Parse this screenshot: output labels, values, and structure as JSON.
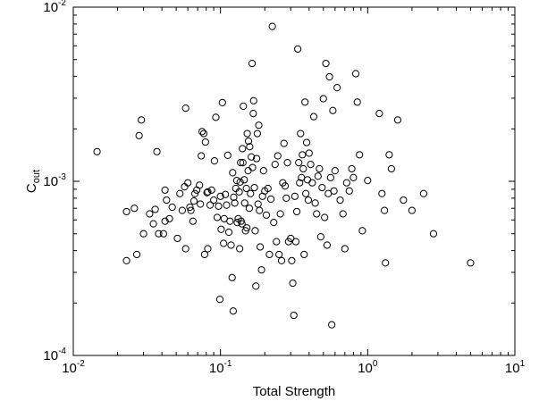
{
  "chart_data": {
    "type": "scatter",
    "title": "",
    "xlabel": "Total Strength",
    "ylabel": {
      "main": "C",
      "sub": "out"
    },
    "x_scale": "log",
    "y_scale": "log",
    "xlim": [
      0.01,
      10
    ],
    "ylim": [
      0.0001,
      0.01
    ],
    "grid": false,
    "legend": "none",
    "marker": "open-circle",
    "marker_color": "#000000",
    "x_ticks": [
      {
        "value": 0.01,
        "base": "10",
        "exp": "-2"
      },
      {
        "value": 0.1,
        "base": "10",
        "exp": "-1"
      },
      {
        "value": 1,
        "base": "10",
        "exp": "0"
      },
      {
        "value": 10,
        "base": "10",
        "exp": "1"
      }
    ],
    "y_ticks": [
      {
        "value": 0.0001,
        "base": "10",
        "exp": "-4"
      },
      {
        "value": 0.001,
        "base": "10",
        "exp": "-3"
      },
      {
        "value": 0.01,
        "base": "10",
        "exp": "-2"
      }
    ],
    "points": [
      [
        0.0145,
        0.00148
      ],
      [
        0.023,
        0.00067
      ],
      [
        0.023,
        0.00035
      ],
      [
        0.026,
        0.0007
      ],
      [
        0.027,
        0.00038
      ],
      [
        0.028,
        0.00183
      ],
      [
        0.029,
        0.00225
      ],
      [
        0.03,
        0.0005
      ],
      [
        0.033,
        0.00065
      ],
      [
        0.035,
        0.00057
      ],
      [
        0.036,
        0.00069
      ],
      [
        0.037,
        0.00148
      ],
      [
        0.038,
        0.0005
      ],
      [
        0.041,
        0.0005
      ],
      [
        0.042,
        0.00059
      ],
      [
        0.042,
        0.00089
      ],
      [
        0.043,
        0.00078
      ],
      [
        0.045,
        0.00061
      ],
      [
        0.047,
        0.00071
      ],
      [
        0.051,
        0.00047
      ],
      [
        0.053,
        0.00085
      ],
      [
        0.055,
        0.00068
      ],
      [
        0.057,
        0.00093
      ],
      [
        0.058,
        0.00041
      ],
      [
        0.058,
        0.00263
      ],
      [
        0.06,
        0.00098
      ],
      [
        0.062,
        0.00071
      ],
      [
        0.063,
        0.00068
      ],
      [
        0.065,
        0.00059
      ],
      [
        0.066,
        0.00077
      ],
      [
        0.067,
        0.00085
      ],
      [
        0.069,
        0.00089
      ],
      [
        0.072,
        0.00095
      ],
      [
        0.073,
        0.00074
      ],
      [
        0.074,
        0.0014
      ],
      [
        0.075,
        0.00193
      ],
      [
        0.077,
        0.00188
      ],
      [
        0.078,
        0.00038
      ],
      [
        0.079,
        0.00168
      ],
      [
        0.081,
        0.00086
      ],
      [
        0.082,
        0.00041
      ],
      [
        0.082,
        0.00087
      ],
      [
        0.085,
        0.00073
      ],
      [
        0.087,
        0.00089
      ],
      [
        0.09,
        0.00078
      ],
      [
        0.091,
        0.00131
      ],
      [
        0.093,
        0.00233
      ],
      [
        0.095,
        0.00062
      ],
      [
        0.097,
        0.00072
      ],
      [
        0.099,
        0.00021
      ],
      [
        0.1,
        0.00082
      ],
      [
        0.101,
        0.00053
      ],
      [
        0.103,
        0.00283
      ],
      [
        0.105,
        0.00044
      ],
      [
        0.106,
        0.00061
      ],
      [
        0.108,
        0.00084
      ],
      [
        0.11,
        0.00073
      ],
      [
        0.112,
        0.00141
      ],
      [
        0.114,
        0.00051
      ],
      [
        0.116,
        0.00059
      ],
      [
        0.118,
        0.00043
      ],
      [
        0.12,
        0.00028
      ],
      [
        0.121,
        0.00112
      ],
      [
        0.122,
        0.00018
      ],
      [
        0.123,
        0.00081
      ],
      [
        0.125,
        0.00075
      ],
      [
        0.127,
        0.00091
      ],
      [
        0.129,
        0.00101
      ],
      [
        0.13,
        0.00058
      ],
      [
        0.132,
        0.00061
      ],
      [
        0.134,
        0.00087
      ],
      [
        0.135,
        0.00041
      ],
      [
        0.136,
        0.00099
      ],
      [
        0.137,
        0.00128
      ],
      [
        0.138,
        0.00059
      ],
      [
        0.14,
        0.00057
      ],
      [
        0.141,
        0.00154
      ],
      [
        0.142,
        0.00128
      ],
      [
        0.143,
        0.0027
      ],
      [
        0.145,
        0.00102
      ],
      [
        0.146,
        0.00075
      ],
      [
        0.148,
        0.00052
      ],
      [
        0.15,
        0.00091
      ],
      [
        0.151,
        0.00054
      ],
      [
        0.152,
        0.00188
      ],
      [
        0.154,
        0.00115
      ],
      [
        0.155,
        0.0017
      ],
      [
        0.157,
        0.0007
      ],
      [
        0.158,
        0.00158
      ],
      [
        0.16,
        0.00085
      ],
      [
        0.162,
        0.00138
      ],
      [
        0.164,
        0.00475
      ],
      [
        0.165,
        0.0012
      ],
      [
        0.167,
        0.00245
      ],
      [
        0.168,
        0.0029
      ],
      [
        0.17,
        0.00092
      ],
      [
        0.172,
        0.00052
      ],
      [
        0.174,
        0.00025
      ],
      [
        0.176,
        0.00135
      ],
      [
        0.178,
        0.00188
      ],
      [
        0.18,
        0.00074
      ],
      [
        0.182,
        0.0021
      ],
      [
        0.184,
        0.00068
      ],
      [
        0.186,
        0.00042
      ],
      [
        0.19,
        0.00031
      ],
      [
        0.193,
        0.00082
      ],
      [
        0.196,
        0.00115
      ],
      [
        0.2,
        0.00088
      ],
      [
        0.205,
        0.00064
      ],
      [
        0.21,
        0.00091
      ],
      [
        0.215,
        0.00038
      ],
      [
        0.22,
        0.00079
      ],
      [
        0.225,
        0.00775
      ],
      [
        0.23,
        0.00058
      ],
      [
        0.235,
        0.00125
      ],
      [
        0.24,
        0.00045
      ],
      [
        0.245,
        0.0014
      ],
      [
        0.25,
        0.00038
      ],
      [
        0.255,
        0.00065
      ],
      [
        0.26,
        0.00035
      ],
      [
        0.265,
        0.00098
      ],
      [
        0.27,
        0.00165
      ],
      [
        0.275,
        0.00094
      ],
      [
        0.28,
        0.0008
      ],
      [
        0.285,
        0.00128
      ],
      [
        0.29,
        0.00045
      ],
      [
        0.3,
        0.00047
      ],
      [
        0.305,
        0.00035
      ],
      [
        0.31,
        0.00026
      ],
      [
        0.315,
        0.00017
      ],
      [
        0.32,
        0.00082
      ],
      [
        0.325,
        0.00045
      ],
      [
        0.33,
        0.00067
      ],
      [
        0.335,
        0.00575
      ],
      [
        0.34,
        0.00128
      ],
      [
        0.345,
        0.00098
      ],
      [
        0.35,
        0.00188
      ],
      [
        0.355,
        0.00105
      ],
      [
        0.36,
        0.00142
      ],
      [
        0.365,
        0.00118
      ],
      [
        0.37,
        0.00038
      ],
      [
        0.375,
        0.00285
      ],
      [
        0.38,
        0.00085
      ],
      [
        0.385,
        0.00167
      ],
      [
        0.39,
        0.00102
      ],
      [
        0.395,
        0.00078
      ],
      [
        0.4,
        0.00145
      ],
      [
        0.41,
        0.00125
      ],
      [
        0.42,
        0.00098
      ],
      [
        0.43,
        0.00235
      ],
      [
        0.44,
        0.00075
      ],
      [
        0.45,
        0.00065
      ],
      [
        0.46,
        0.00107
      ],
      [
        0.47,
        0.00118
      ],
      [
        0.48,
        0.00048
      ],
      [
        0.49,
        0.00092
      ],
      [
        0.5,
        0.00298
      ],
      [
        0.51,
        0.00062
      ],
      [
        0.52,
        0.00475
      ],
      [
        0.53,
        0.00043
      ],
      [
        0.54,
        0.00085
      ],
      [
        0.55,
        0.00398
      ],
      [
        0.56,
        0.00105
      ],
      [
        0.57,
        0.00015
      ],
      [
        0.58,
        0.00255
      ],
      [
        0.59,
        0.00088
      ],
      [
        0.6,
        0.00115
      ],
      [
        0.62,
        0.00345
      ],
      [
        0.65,
        0.00078
      ],
      [
        0.68,
        0.00065
      ],
      [
        0.7,
        0.00041
      ],
      [
        0.72,
        0.00098
      ],
      [
        0.75,
        0.00088
      ],
      [
        0.78,
        0.00118
      ],
      [
        0.8,
        0.00105
      ],
      [
        0.83,
        0.00415
      ],
      [
        0.85,
        0.00285
      ],
      [
        0.88,
        0.00142
      ],
      [
        0.92,
        0.00052
      ],
      [
        1.0,
        0.00101
      ],
      [
        1.2,
        0.00245
      ],
      [
        1.25,
        0.00085
      ],
      [
        1.3,
        0.00068
      ],
      [
        1.32,
        0.00034
      ],
      [
        1.4,
        0.00142
      ],
      [
        1.45,
        0.00118
      ],
      [
        1.6,
        0.00225
      ],
      [
        1.75,
        0.00078
      ],
      [
        2.0,
        0.00068
      ],
      [
        2.4,
        0.00085
      ],
      [
        2.8,
        0.0005
      ],
      [
        5.0,
        0.00034
      ]
    ]
  }
}
